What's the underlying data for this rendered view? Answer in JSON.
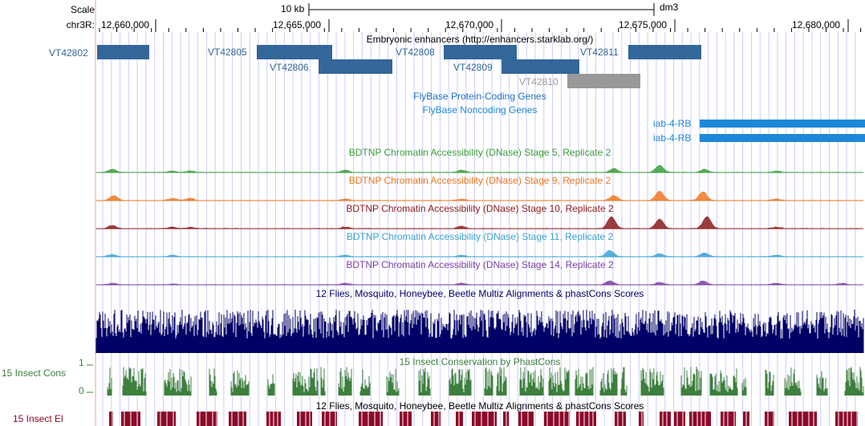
{
  "scale": {
    "label": "Scale",
    "bar_label": "10 kb",
    "assembly": "dm3"
  },
  "position": {
    "chrom_label": "chr3R:",
    "ticks": [
      "12,660,000",
      "12,665,000",
      "12,670,000",
      "12,675,000",
      "12,680,000"
    ]
  },
  "enhancers": {
    "title": "Embryonic enhancers (http://enhancers.starklab.org/)",
    "color": "#336699",
    "gray_color": "#999999",
    "items": [
      {
        "name": "VT42802"
      },
      {
        "name": "VT42805"
      },
      {
        "name": "VT42806"
      },
      {
        "name": "VT42808"
      },
      {
        "name": "VT42809"
      },
      {
        "name": "VT42810"
      },
      {
        "name": "VT42811"
      }
    ]
  },
  "genes": {
    "protein_coding_title": "FlyBase Protein-Coding Genes",
    "noncoding_title": "FlyBase Noncoding Genes",
    "color": "#1e88d8",
    "items": [
      {
        "name": "iab-4-RB"
      },
      {
        "name": "iab-4-RB"
      }
    ]
  },
  "dnase_tracks": [
    {
      "title": "BDTNP Chromatin Accessibility (DNase) Stage 5, Replicate 2",
      "color": "#3a9d3a"
    },
    {
      "title": "BDTNP Chromatin Accessibility (DNase) Stage 9, Replicate 2",
      "color": "#ee7722"
    },
    {
      "title": "BDTNP Chromatin Accessibility (DNase) Stage 10, Replicate 2",
      "color": "#8b1a1a"
    },
    {
      "title": "BDTNP Chromatin Accessibility (DNase) Stage 11, Replicate 2",
      "color": "#3ba3d0"
    },
    {
      "title": "BDTNP Chromatin Accessibility (DNase) Stage 14, Replicate 2",
      "color": "#7b3fa0"
    }
  ],
  "multiz": {
    "title": "12 Flies, Mosquito, Honeybee, Beetle Multiz Alignments & phastCons Scores",
    "color": "#000066"
  },
  "cons": {
    "title": "15 Insect Conservation by PhastCons",
    "side_label": "15 Insect Cons",
    "axis_max": "1",
    "axis_min": "0",
    "color": "#3d7f3d"
  },
  "el": {
    "title": "12 Flies, Mosquito, Honeybee, Beetle Multiz Alignments & phastCons Scores",
    "side_label": "15 Insect El",
    "color": "#8b0a2a"
  },
  "grid_color": "#ccccff",
  "highlight_color": "#ff9999"
}
